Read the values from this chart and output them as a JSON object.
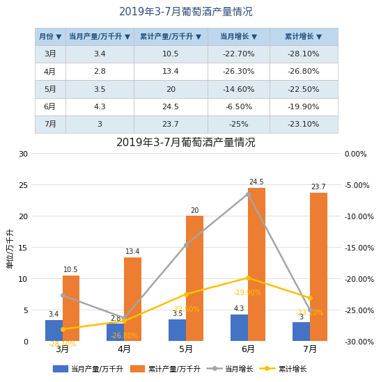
{
  "title_table": "2019年3-7月葡萄酒产量情况",
  "title_chart": "2019年3-7月葡萄酒产量情况",
  "months": [
    "3月",
    "4月",
    "5月",
    "6月",
    "7月"
  ],
  "monthly_output": [
    3.4,
    2.8,
    3.5,
    4.3,
    3.0
  ],
  "cumulative_output": [
    10.5,
    13.4,
    20.0,
    24.5,
    23.7
  ],
  "monthly_growth": [
    -22.7,
    -26.3,
    -14.6,
    -6.5,
    -25.0
  ],
  "cumulative_growth": [
    -28.1,
    -26.8,
    -22.5,
    -19.9,
    -23.1
  ],
  "monthly_output_labels": [
    "3.4",
    "2.8",
    "3.5",
    "4.3",
    "3"
  ],
  "cumulative_output_labels": [
    "10.5",
    "13.4",
    "20",
    "24.5",
    "23.7"
  ],
  "monthly_growth_labels": [
    "-22.70%",
    "-26.30%",
    "-14.60%",
    "-6.50%",
    "-25%"
  ],
  "cumulative_growth_labels": [
    "-28.10%",
    "-26.80%",
    "-22.50%",
    "-19.90%",
    "-23.10%"
  ],
  "col_headers": [
    "月份",
    "当月产量/万千升",
    "累计产量/万千升",
    "当月增长",
    "累计增长"
  ],
  "col_header_short": [
    "月份 ▼",
    "当月产量/万千升 ▼",
    "累计产量/万千升 ▼",
    "当月增长 ▼",
    "累计增长 ▼"
  ],
  "bar_color_monthly": "#4472C4",
  "bar_color_cumulative": "#ED7D31",
  "line_color_monthly": "#A5A5A5",
  "line_color_cumulative": "#FFC000",
  "table_header_bg": "#BDD7EE",
  "table_row_bg_odd": "#DEEAF1",
  "table_row_bg_even": "#FFFFFF",
  "ylabel_left": "单位/万千升",
  "ylim_left": [
    0,
    30
  ],
  "ylim_right": [
    -30,
    0
  ],
  "yticks_left": [
    0,
    5,
    10,
    15,
    20,
    25,
    30
  ],
  "yticks_right": [
    0.0,
    -5.0,
    -10.0,
    -15.0,
    -20.0,
    -25.0,
    -30.0
  ],
  "ytick_right_labels": [
    "0.00%",
    "-5.00%",
    "-10.00%",
    "-15.00%",
    "-20.00%",
    "-25.00%",
    "-30.00%"
  ],
  "legend_labels": [
    "当月产量/万千升",
    "累计产量/万千升",
    "当月增长",
    "累计增长"
  ],
  "bg_color": "#FFFFFF",
  "table_title_color": "#2E4C7A",
  "chart_title_color": "#1F1F1F"
}
